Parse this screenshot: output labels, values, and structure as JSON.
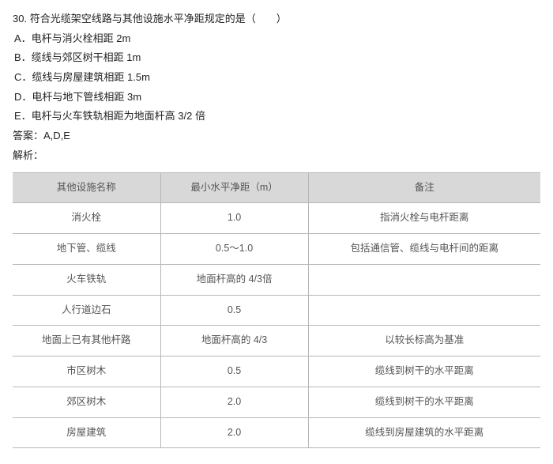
{
  "question": {
    "number": "30.",
    "stem": "符合光缆架空线路与其他设施水平净距规定的是（　　）",
    "options": {
      "A": "A．电杆与消火栓相距 2m",
      "B": "B．缆线与郊区树干相距 1m",
      "C": "C．缆线与房屋建筑相距 1.5m",
      "D": "D．电杆与地下管线相距 3m",
      "E": "E．电杆与火车铁轨相距为地面杆高 3/2 倍"
    },
    "answer_label": "答案：A,D,E",
    "explain_label": "解析："
  },
  "table": {
    "columns": [
      "其他设施名称",
      "最小水平净距（m）",
      "备注"
    ],
    "rows": [
      [
        "消火栓",
        "1.0",
        "指消火栓与电杆距离"
      ],
      [
        "地下管、缆线",
        "0.5～1.0",
        "包括通信管、缆线与电杆间的距离"
      ],
      [
        "火车铁轨",
        "地面杆高的 4/3倍",
        ""
      ],
      [
        "人行道边石",
        "0.5",
        ""
      ],
      [
        "地面上已有其他杆路",
        "地面杆高的 4/3",
        "以较长标高为基准"
      ],
      [
        "市区树木",
        "0.5",
        "缆线到树干的水平距离"
      ],
      [
        "郊区树木",
        "2.0",
        "缆线到树干的水平距离"
      ],
      [
        "房屋建筑",
        "2.0",
        "缆线到房屋建筑的水平距离"
      ]
    ]
  }
}
